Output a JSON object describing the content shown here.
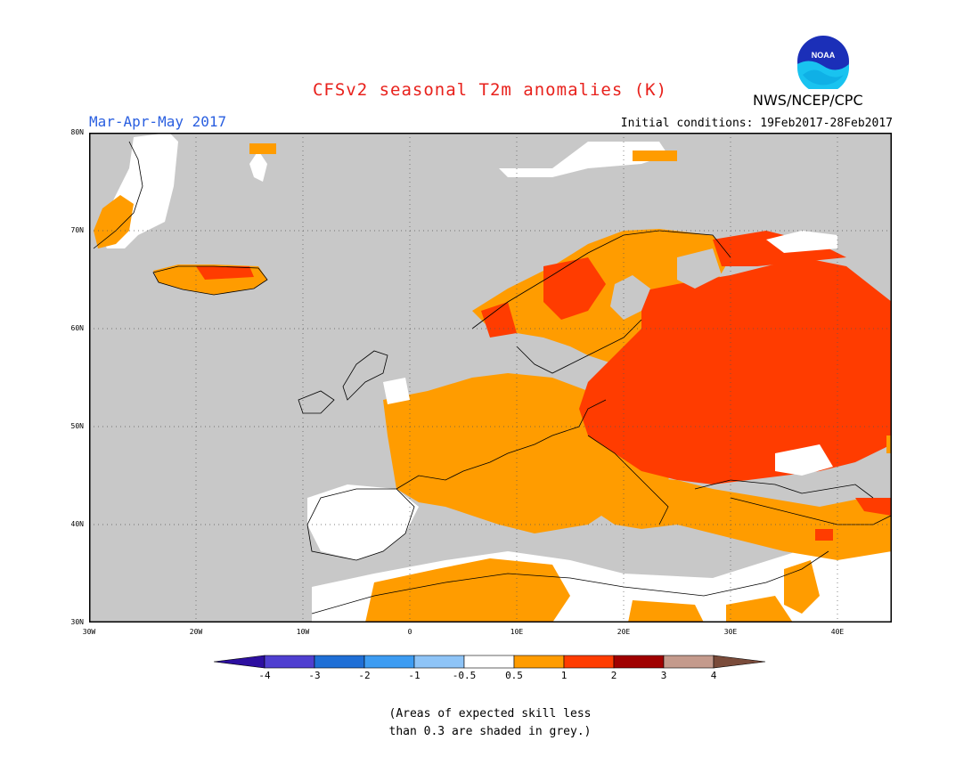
{
  "title": "CFSv2 seasonal T2m anomalies (K)",
  "period": "Mar-Apr-May 2017",
  "initial_conditions": "Initial conditions: 19Feb2017-28Feb2017",
  "agency": "NWS/NCEP/CPC",
  "logo_text": "NOAA",
  "map": {
    "region": "Europe",
    "lon_range": [
      -30,
      45
    ],
    "lat_range": [
      30,
      80
    ],
    "lat_ticks": [
      {
        "value": 80,
        "label": "80N"
      },
      {
        "value": 70,
        "label": "70N"
      },
      {
        "value": 60,
        "label": "60N"
      },
      {
        "value": 50,
        "label": "50N"
      },
      {
        "value": 40,
        "label": "40N"
      },
      {
        "value": 30,
        "label": "30N"
      }
    ],
    "lon_ticks": [
      {
        "value": -30,
        "label": "30W"
      },
      {
        "value": -20,
        "label": "20W"
      },
      {
        "value": -10,
        "label": "10W"
      },
      {
        "value": 0,
        "label": "0"
      },
      {
        "value": 10,
        "label": "10E"
      },
      {
        "value": 20,
        "label": "20E"
      },
      {
        "value": 30,
        "label": "30E"
      },
      {
        "value": 40,
        "label": "40E"
      }
    ],
    "grid": "dotted",
    "skill_mask_color": "#c8c8c8"
  },
  "colorbar": {
    "boundaries": [
      {
        "value": -4,
        "label": "-4"
      },
      {
        "value": -3,
        "label": "-3"
      },
      {
        "value": -2,
        "label": "-2"
      },
      {
        "value": -1,
        "label": "-1"
      },
      {
        "value": -0.5,
        "label": "-0.5"
      },
      {
        "value": 0.5,
        "label": "0.5"
      },
      {
        "value": 1,
        "label": "1"
      },
      {
        "value": 2,
        "label": "2"
      },
      {
        "value": 3,
        "label": "3"
      },
      {
        "value": 4,
        "label": "4"
      }
    ],
    "colors": [
      "#2d0fa0",
      "#4f3fd0",
      "#1f6fd6",
      "#3d9cf2",
      "#8ec4f7",
      "#ffffff",
      "#ff9c00",
      "#ff3c00",
      "#a00000",
      "#c49a8c",
      "#7a4b3a"
    ]
  },
  "note": {
    "line1": "(Areas of expected skill less",
    "line2": "than 0.3 are shaded in grey.)"
  }
}
